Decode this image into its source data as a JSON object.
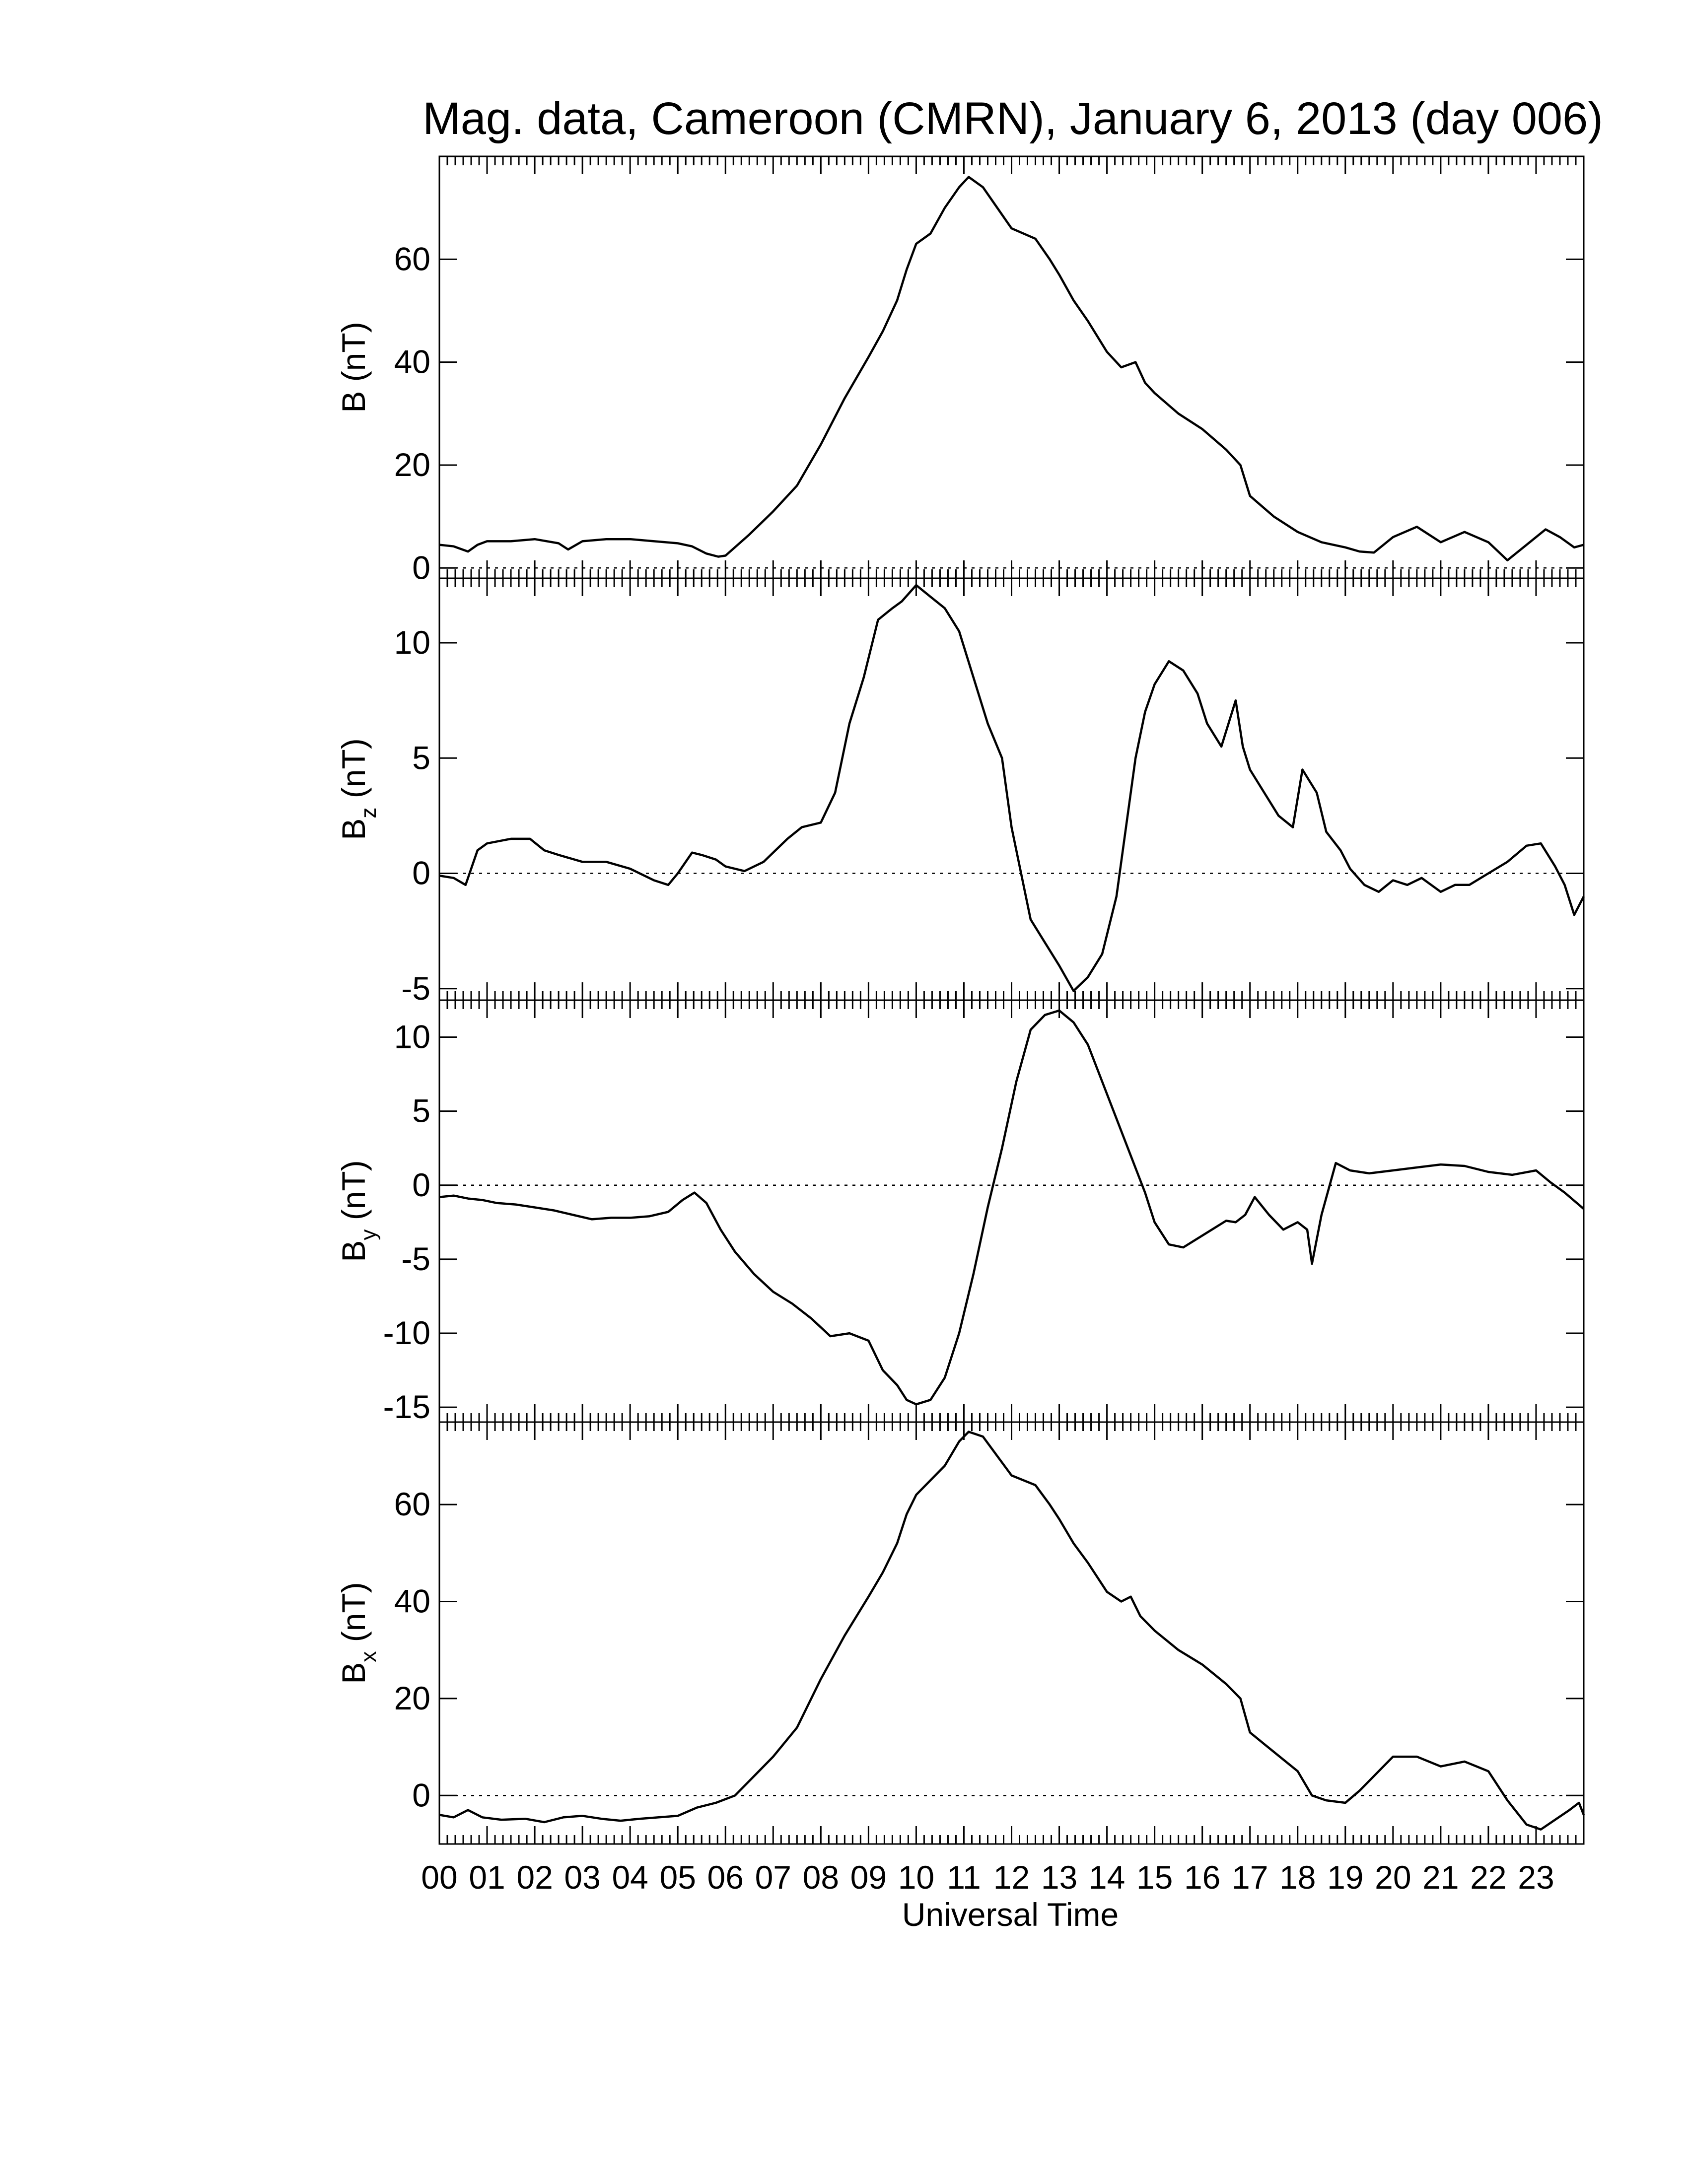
{
  "title": "Mag. data, Cameroon (CMRN), January 6, 2013 (day 006)",
  "chart_data": [
    {
      "type": "line",
      "ylabel_main": "B",
      "ylabel_sub": "",
      "ylabel_unit": "(nT)",
      "ylim": [
        -2,
        80
      ],
      "yticks": [
        0,
        20,
        40,
        60
      ],
      "ytick_labels": [
        "0",
        "20",
        "40",
        "60"
      ],
      "zero_line": true,
      "x": [
        0,
        0.3,
        0.6,
        0.8,
        1,
        1.5,
        2,
        2.5,
        2.7,
        3,
        3.5,
        4,
        4.5,
        5,
        5.3,
        5.6,
        5.85,
        6,
        6.5,
        7,
        7.5,
        8,
        8.5,
        9,
        9.3,
        9.6,
        9.8,
        10,
        10.3,
        10.6,
        10.9,
        11.1,
        11.4,
        11.7,
        12,
        12.5,
        12.8,
        13,
        13.3,
        13.6,
        14,
        14.3,
        14.6,
        14.8,
        15,
        15.5,
        16,
        16.5,
        16.8,
        17,
        17.5,
        18,
        18.5,
        19,
        19.3,
        19.6,
        20,
        20.5,
        21,
        21.5,
        22,
        22.4,
        22.8,
        23.2,
        23.5,
        23.8,
        24
      ],
      "y": [
        4.5,
        4.2,
        3.2,
        4.5,
        5.2,
        5.2,
        5.6,
        4.8,
        3.6,
        5.2,
        5.6,
        5.6,
        5.2,
        4.8,
        4.2,
        2.8,
        2.2,
        2.4,
        6.5,
        11,
        16,
        24,
        33,
        41,
        46,
        52,
        58,
        63,
        65,
        70,
        74,
        76,
        74,
        70,
        66,
        64,
        60,
        57,
        52,
        48,
        42,
        39,
        40,
        36,
        34,
        30,
        27,
        23,
        20,
        14,
        10,
        7,
        5,
        4,
        3.2,
        3,
        6,
        8,
        5,
        7,
        5,
        1.5,
        4.5,
        7.5,
        6,
        4,
        4.5
      ]
    },
    {
      "type": "line",
      "ylabel_main": "B",
      "ylabel_sub": "z",
      "ylabel_unit": "(nT)",
      "ylim": [
        -5.5,
        12.8
      ],
      "yticks": [
        -5,
        0,
        5,
        10
      ],
      "ytick_labels": [
        "-5",
        "0",
        "5",
        "10"
      ],
      "zero_line": true,
      "x": [
        0,
        0.3,
        0.55,
        0.8,
        1,
        1.5,
        1.9,
        2.2,
        2.5,
        3,
        3.5,
        4,
        4.5,
        4.8,
        5,
        5.3,
        5.5,
        5.8,
        6,
        6.4,
        6.8,
        7.3,
        7.6,
        8,
        8.3,
        8.6,
        8.9,
        9.2,
        9.5,
        9.7,
        10,
        10.3,
        10.6,
        10.9,
        11.2,
        11.5,
        11.8,
        12,
        12.2,
        12.4,
        12.7,
        13,
        13.3,
        13.6,
        13.9,
        14.2,
        14.4,
        14.6,
        14.8,
        15,
        15.3,
        15.6,
        15.9,
        16.1,
        16.4,
        16.7,
        16.85,
        17,
        17.3,
        17.6,
        17.9,
        18.1,
        18.4,
        18.6,
        18.9,
        19.1,
        19.4,
        19.7,
        20,
        20.3,
        20.6,
        21,
        21.3,
        21.6,
        22,
        22.4,
        22.8,
        23.1,
        23.4,
        23.6,
        23.8,
        24
      ],
      "y": [
        -0.1,
        -0.2,
        -0.5,
        1.0,
        1.3,
        1.5,
        1.5,
        1.0,
        0.8,
        0.5,
        0.5,
        0.2,
        -0.3,
        -0.5,
        0,
        0.9,
        0.8,
        0.6,
        0.3,
        0.1,
        0.5,
        1.5,
        2.0,
        2.2,
        3.5,
        6.5,
        8.5,
        11,
        11.5,
        11.8,
        12.5,
        12.0,
        11.5,
        10.5,
        8.5,
        6.5,
        5.0,
        2.0,
        0,
        -2,
        -3,
        -4,
        -5.1,
        -4.5,
        -3.5,
        -1,
        2,
        5,
        7,
        8.2,
        9.2,
        8.8,
        7.8,
        6.5,
        5.5,
        7.5,
        5.5,
        4.5,
        3.5,
        2.5,
        2.0,
        4.5,
        3.5,
        1.8,
        1.0,
        0.2,
        -0.5,
        -0.8,
        -0.3,
        -0.5,
        -0.2,
        -0.8,
        -0.5,
        -0.5,
        0,
        0.5,
        1.2,
        1.3,
        0.3,
        -0.5,
        -1.8,
        -1.0
      ]
    },
    {
      "type": "line",
      "ylabel_main": "B",
      "ylabel_sub": "y",
      "ylabel_unit": "(nT)",
      "ylim": [
        -16,
        12.5
      ],
      "yticks": [
        -15,
        -10,
        -5,
        0,
        5,
        10
      ],
      "ytick_labels": [
        "-15",
        "-10",
        "-5",
        "0",
        "5",
        "10"
      ],
      "zero_line": true,
      "x": [
        0,
        0.3,
        0.6,
        0.9,
        1.2,
        1.6,
        2,
        2.4,
        2.8,
        3.2,
        3.6,
        4,
        4.4,
        4.8,
        5.1,
        5.35,
        5.6,
        5.9,
        6.2,
        6.6,
        7,
        7.4,
        7.8,
        8.2,
        8.6,
        9,
        9.3,
        9.6,
        9.8,
        10,
        10.3,
        10.6,
        10.9,
        11.2,
        11.5,
        11.8,
        12.1,
        12.4,
        12.7,
        13,
        13.3,
        13.6,
        13.9,
        14.2,
        14.5,
        14.8,
        15,
        15.3,
        15.6,
        15.9,
        16.2,
        16.5,
        16.7,
        16.9,
        17.1,
        17.4,
        17.7,
        18,
        18.2,
        18.3,
        18.5,
        18.8,
        19.1,
        19.5,
        20,
        20.5,
        21,
        21.5,
        22,
        22.5,
        23,
        23.3,
        23.6,
        24
      ],
      "y": [
        -0.8,
        -0.7,
        -0.9,
        -1.0,
        -1.2,
        -1.3,
        -1.5,
        -1.7,
        -2.0,
        -2.3,
        -2.2,
        -2.2,
        -2.1,
        -1.8,
        -1.0,
        -0.5,
        -1.2,
        -3.0,
        -4.5,
        -6.0,
        -7.2,
        -8.0,
        -9.0,
        -10.2,
        -10.0,
        -10.5,
        -12.5,
        -13.5,
        -14.5,
        -14.8,
        -14.5,
        -13.0,
        -10.0,
        -6.0,
        -1.5,
        2.5,
        7.0,
        10.5,
        11.5,
        11.8,
        11.0,
        9.5,
        7.0,
        4.5,
        2.0,
        -0.5,
        -2.5,
        -4.0,
        -4.2,
        -3.6,
        -3.0,
        -2.4,
        -2.5,
        -2.0,
        -0.8,
        -2.0,
        -3.0,
        -2.5,
        -3.0,
        -5.3,
        -2.0,
        1.5,
        1.0,
        0.8,
        1.0,
        1.2,
        1.4,
        1.3,
        0.9,
        0.7,
        1.0,
        0.2,
        -0.5,
        -1.6
      ]
    },
    {
      "type": "line",
      "ylabel_main": "B",
      "ylabel_sub": "x",
      "ylabel_unit": "(nT)",
      "ylim": [
        -10,
        77
      ],
      "yticks": [
        0,
        20,
        40,
        60
      ],
      "ytick_labels": [
        "0",
        "20",
        "40",
        "60"
      ],
      "zero_line": true,
      "x": [
        0,
        0.3,
        0.6,
        0.9,
        1.3,
        1.8,
        2.2,
        2.6,
        3,
        3.4,
        3.8,
        4.2,
        4.6,
        5,
        5.4,
        5.8,
        6.2,
        6.6,
        7,
        7.5,
        8,
        8.5,
        9,
        9.3,
        9.6,
        9.8,
        10,
        10.3,
        10.6,
        10.9,
        11.1,
        11.4,
        11.7,
        12,
        12.5,
        12.8,
        13,
        13.3,
        13.6,
        14,
        14.3,
        14.5,
        14.7,
        15,
        15.5,
        16,
        16.5,
        16.8,
        17,
        17.5,
        18,
        18.3,
        18.6,
        19,
        19.3,
        19.6,
        20,
        20.5,
        21,
        21.5,
        22,
        22.4,
        22.8,
        23.1,
        23.4,
        23.7,
        23.9,
        24
      ],
      "y": [
        -4,
        -4.5,
        -3,
        -4.5,
        -5,
        -4.8,
        -5.5,
        -4.5,
        -4.2,
        -4.8,
        -5.2,
        -4.8,
        -4.5,
        -4.2,
        -2.5,
        -1.5,
        0,
        4,
        8,
        14,
        24,
        33,
        41,
        46,
        52,
        58,
        62,
        65,
        68,
        73,
        75,
        74,
        70,
        66,
        64,
        60,
        57,
        52,
        48,
        42,
        40,
        41,
        37,
        34,
        30,
        27,
        23,
        20,
        13,
        9,
        5,
        0,
        -1,
        -1.5,
        1,
        4,
        8,
        8,
        6,
        7,
        5,
        -1,
        -6,
        -7,
        -5,
        -3,
        -1.5,
        -4
      ]
    }
  ],
  "x_axis": {
    "label": "Universal Time",
    "range": [
      0,
      24
    ],
    "tick_labels": [
      "00",
      "01",
      "02",
      "03",
      "04",
      "05",
      "06",
      "07",
      "08",
      "09",
      "10",
      "11",
      "12",
      "13",
      "14",
      "15",
      "16",
      "17",
      "18",
      "19",
      "20",
      "21",
      "22",
      "23"
    ]
  }
}
